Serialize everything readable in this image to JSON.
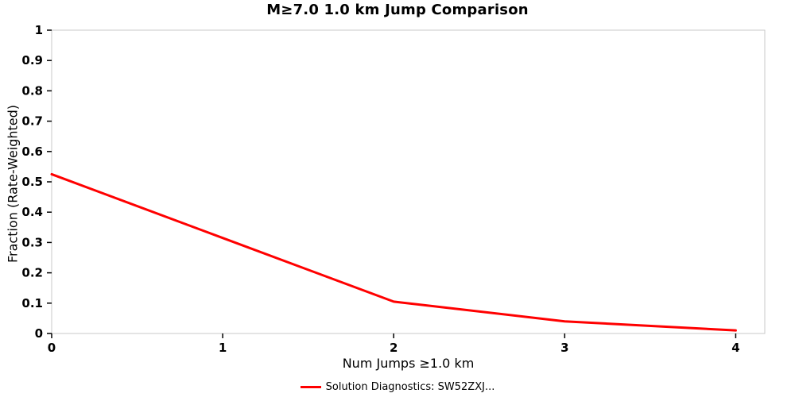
{
  "chart_data": {
    "type": "line",
    "title": "M≥7.0 1.0 km Jump Comparison",
    "xlabel": "Num Jumps ≥1.0 km",
    "ylabel": "Fraction (Rate-Weighted)",
    "x": [
      0,
      1,
      2,
      3,
      4
    ],
    "series": [
      {
        "name": "Solution Diagnostics: SW52ZXJ...",
        "color": "#ff0000",
        "values": [
          0.525,
          0.315,
          0.105,
          0.04,
          0.01
        ]
      }
    ],
    "xlim": [
      0,
      4.17
    ],
    "ylim": [
      0,
      1
    ],
    "x_ticks": [
      0,
      1,
      2,
      3,
      4
    ],
    "x_tick_labels": [
      "0",
      "1",
      "2",
      "3",
      "4"
    ],
    "y_ticks": [
      0,
      0.1,
      0.2,
      0.3,
      0.4,
      0.5,
      0.6,
      0.7,
      0.8,
      0.9,
      1
    ],
    "y_tick_labels": [
      "0",
      "0.1",
      "0.2",
      "0.3",
      "0.4",
      "0.5",
      "0.6",
      "0.7",
      "0.8",
      "0.9",
      "1"
    ],
    "grid": false,
    "legend_position": "bottom",
    "frame_color": "#c8c8c8",
    "tick_color": "#000000"
  },
  "legend": {
    "label": "Solution Diagnostics: SW52ZXJ..."
  }
}
